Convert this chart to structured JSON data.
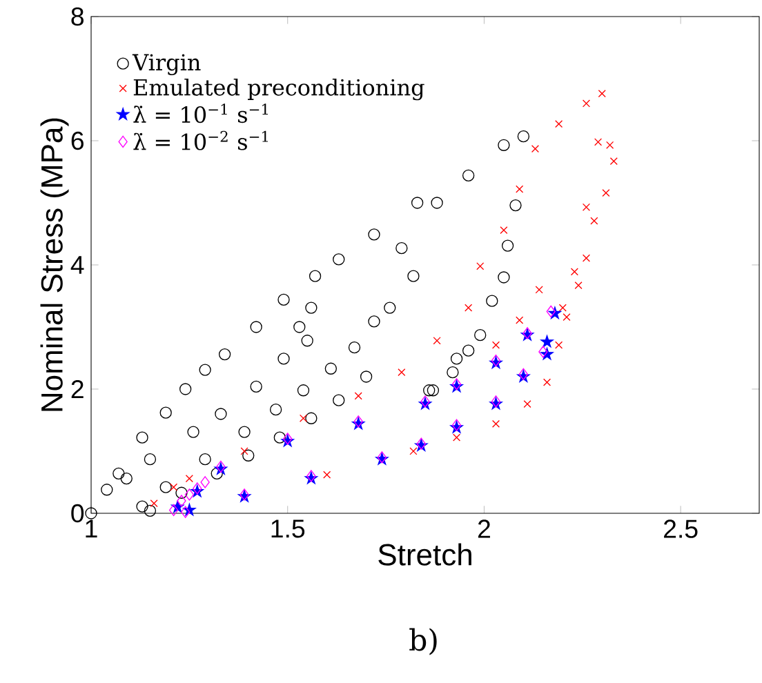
{
  "chart_data": {
    "type": "scatter",
    "xlabel": "Stretch",
    "ylabel": "Nominal Stress (MPa)",
    "annotations": [
      "b)"
    ],
    "xlim": [
      1,
      2.7
    ],
    "ylim": [
      0,
      8
    ],
    "xticks": [
      1,
      1.5,
      2,
      2.5
    ],
    "yticks": [
      0,
      2,
      4,
      6,
      8
    ],
    "grid": false,
    "legend": "top left",
    "series": [
      {
        "name": "Virgin",
        "color": "#000000",
        "marker": "circle",
        "x": [
          1.0,
          1.04,
          1.07,
          1.13,
          1.19,
          1.24,
          1.29,
          1.34,
          1.42,
          1.49,
          1.57,
          1.63,
          1.72,
          1.83,
          1.88,
          1.96,
          2.05,
          2.1,
          2.08,
          2.06,
          2.05,
          2.02,
          1.99,
          1.96,
          1.92,
          1.87,
          1.82,
          1.79,
          1.76,
          1.72,
          1.67,
          1.61,
          1.54,
          1.47,
          1.39,
          1.29,
          1.19,
          1.13,
          1.55,
          1.53,
          1.56,
          1.49,
          1.42,
          1.33,
          1.26,
          1.15,
          1.09,
          1.7,
          1.63,
          1.56,
          1.48,
          1.4,
          1.32,
          1.23,
          1.15,
          1.86,
          1.93
        ],
        "values": [
          0,
          0.38,
          0.64,
          1.22,
          1.62,
          2.0,
          2.31,
          2.56,
          3.0,
          3.44,
          3.82,
          4.09,
          4.49,
          5.0,
          5.0,
          5.44,
          5.93,
          6.07,
          4.96,
          4.31,
          3.8,
          3.42,
          2.87,
          2.62,
          2.27,
          1.98,
          3.82,
          4.27,
          3.31,
          3.09,
          2.67,
          2.33,
          1.98,
          1.67,
          1.31,
          0.87,
          0.42,
          0.11,
          2.78,
          3.0,
          3.31,
          2.49,
          2.04,
          1.6,
          1.31,
          0.87,
          0.56,
          2.2,
          1.82,
          1.53,
          1.22,
          0.93,
          0.64,
          0.33,
          0.04,
          1.98,
          2.49
        ]
      },
      {
        "name": "Emulated preconditioning",
        "color": "#ff0000",
        "marker": "cross",
        "x": [
          1.16,
          1.21,
          1.25,
          1.39,
          1.54,
          1.68,
          1.79,
          1.88,
          1.96,
          1.99,
          2.05,
          2.09,
          2.13,
          2.19,
          2.26,
          2.3,
          2.29,
          2.32,
          2.33,
          2.31,
          2.28,
          2.26,
          2.24,
          2.21,
          2.19,
          2.16,
          2.11,
          2.03,
          1.93,
          2.26,
          2.23,
          2.2,
          2.09,
          2.14,
          2.03,
          1.82,
          1.6
        ],
        "values": [
          0.16,
          0.42,
          0.56,
          1.0,
          1.53,
          1.89,
          2.27,
          2.78,
          3.31,
          3.98,
          4.56,
          5.22,
          5.87,
          6.27,
          6.6,
          6.76,
          5.98,
          5.93,
          5.67,
          5.16,
          4.71,
          4.11,
          3.67,
          3.16,
          2.71,
          2.11,
          1.76,
          1.44,
          1.22,
          4.93,
          3.89,
          3.31,
          3.11,
          3.6,
          2.71,
          1.0,
          0.62
        ]
      },
      {
        "name": "λ̇ = 10$^{−1}$ s$^{−1}$",
        "color": "#0000ff",
        "marker": "star",
        "x": [
          1.22,
          1.27,
          1.33,
          1.5,
          1.68,
          1.85,
          1.93,
          2.03,
          2.11,
          2.18,
          1.25,
          1.39,
          1.56,
          1.74,
          1.84,
          1.93,
          2.03,
          2.1,
          2.16,
          2.16
        ],
        "values": [
          0.1,
          0.35,
          0.71,
          1.16,
          1.44,
          1.76,
          2.04,
          2.42,
          2.87,
          3.22,
          0.05,
          0.27,
          0.56,
          0.87,
          1.09,
          1.38,
          1.76,
          2.2,
          2.56,
          2.76
        ]
      },
      {
        "name": "λ̇ = 10$^{−2}$ s$^{−1}$",
        "color": "#ff00ff",
        "marker": "diamond",
        "x": [
          1.21,
          1.23,
          1.25,
          1.27,
          1.29,
          1.33,
          1.5,
          1.68,
          1.85,
          1.93,
          2.03,
          2.11,
          2.17,
          1.24,
          1.39,
          1.56,
          1.74,
          1.84,
          1.93,
          2.03,
          2.1,
          2.15
        ],
        "values": [
          0.05,
          0.2,
          0.3,
          0.4,
          0.5,
          0.75,
          1.2,
          1.48,
          1.8,
          2.08,
          2.46,
          2.9,
          3.25,
          0.02,
          0.3,
          0.6,
          0.9,
          1.12,
          1.42,
          1.8,
          2.24,
          2.6
        ]
      }
    ]
  }
}
